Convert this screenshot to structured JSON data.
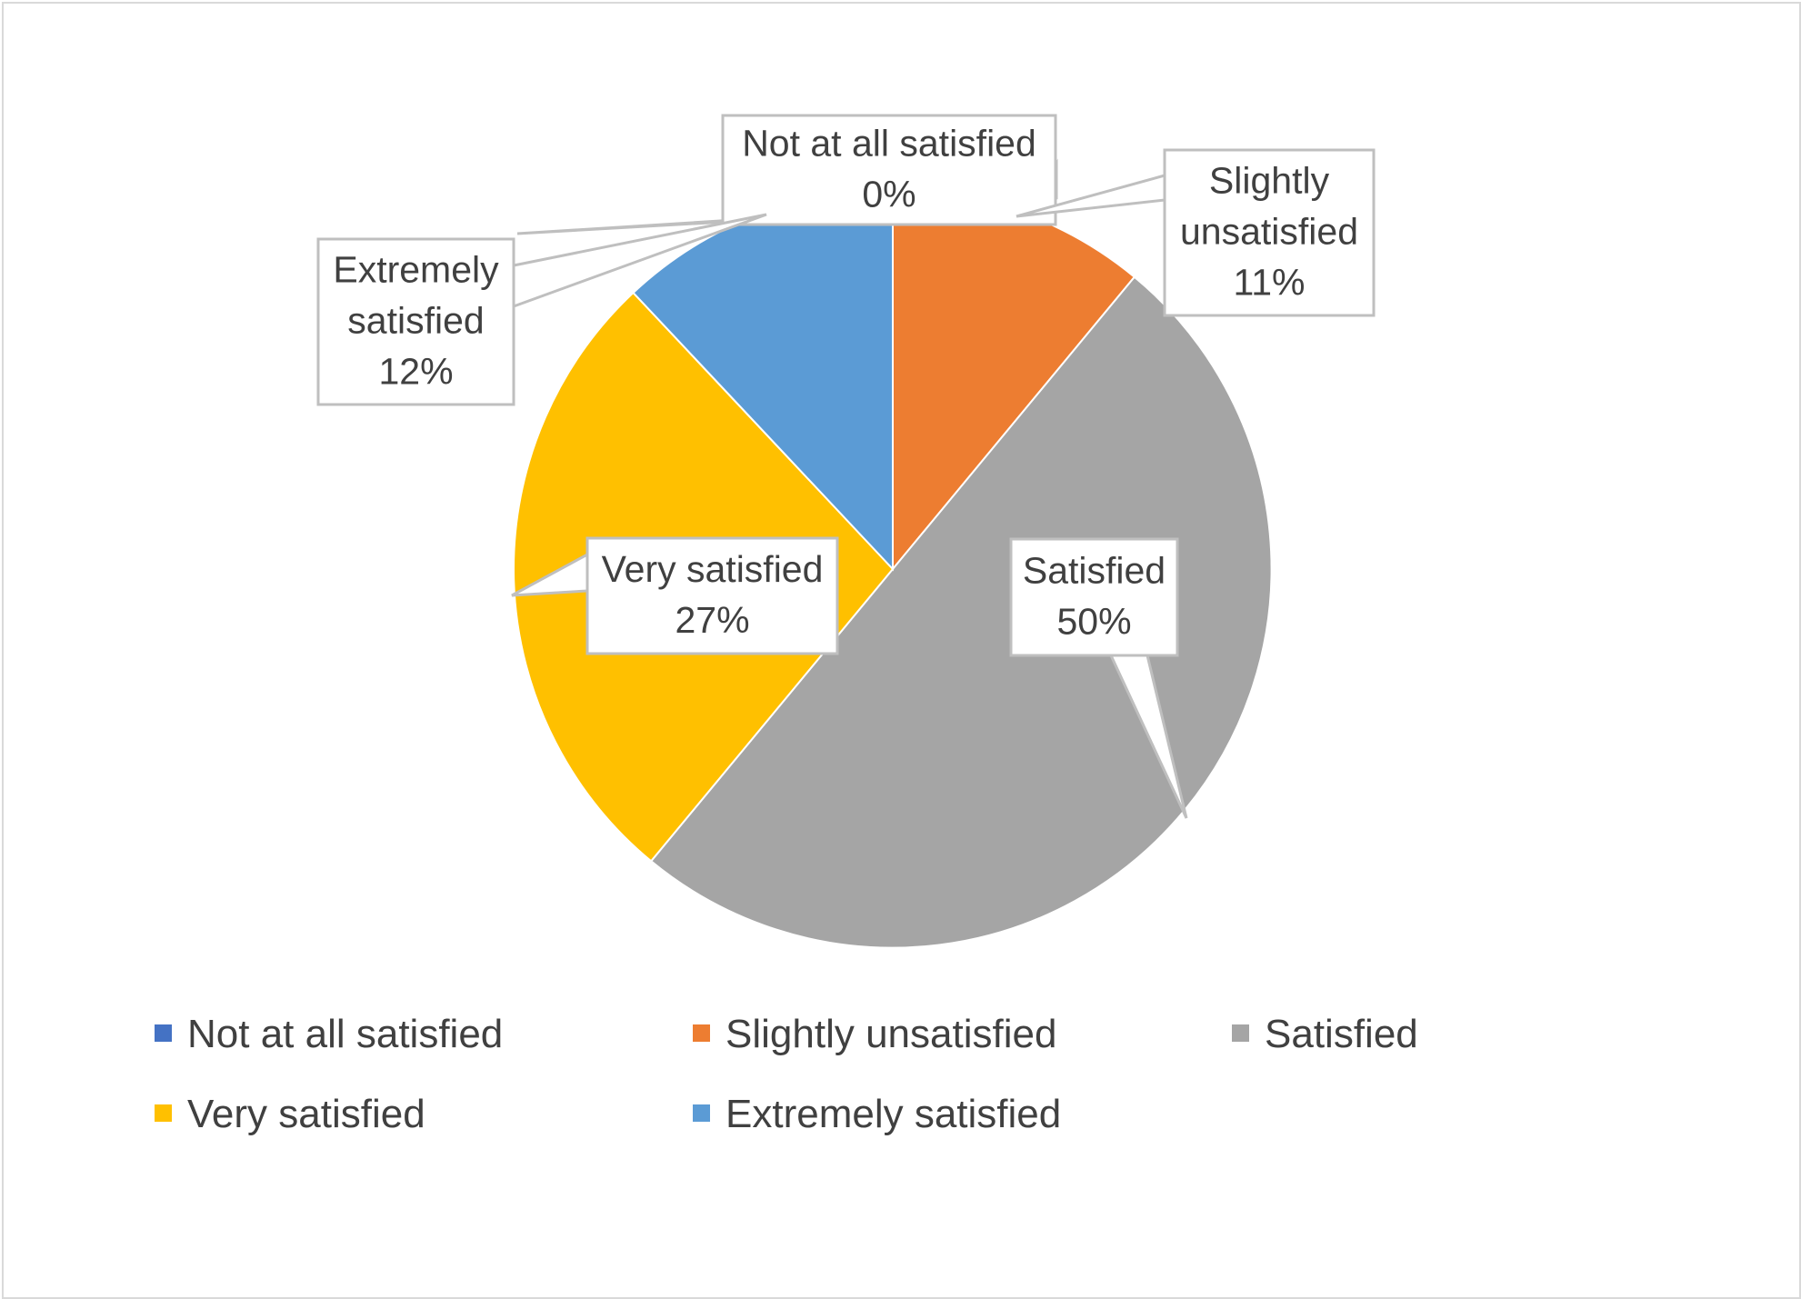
{
  "chart_data": {
    "type": "pie",
    "title": "",
    "categories": [
      "Not at all satisfied",
      "Slightly unsatisfied",
      "Satisfied",
      "Very satisfied",
      "Extremely satisfied"
    ],
    "values": [
      0,
      11,
      50,
      27,
      12
    ],
    "value_unit": "%",
    "colors": [
      "#4472c4",
      "#ed7d31",
      "#a5a5a5",
      "#ffc000",
      "#5b9bd5"
    ],
    "data_labels": [
      {
        "lines": [
          "Not at all satisfied",
          "0%"
        ]
      },
      {
        "lines": [
          "Slightly",
          "unsatisfied",
          "11%"
        ]
      },
      {
        "lines": [
          "Satisfied",
          "50%"
        ]
      },
      {
        "lines": [
          "Very satisfied",
          "27%"
        ]
      },
      {
        "lines": [
          "Extremely",
          "satisfied",
          "12%"
        ]
      }
    ],
    "legend": {
      "position": "bottom",
      "entries": [
        "Not at all satisfied",
        "Slightly unsatisfied",
        "Satisfied",
        "Very satisfied",
        "Extremely satisfied"
      ]
    },
    "start_angle_deg": 0,
    "direction": "clockwise"
  }
}
